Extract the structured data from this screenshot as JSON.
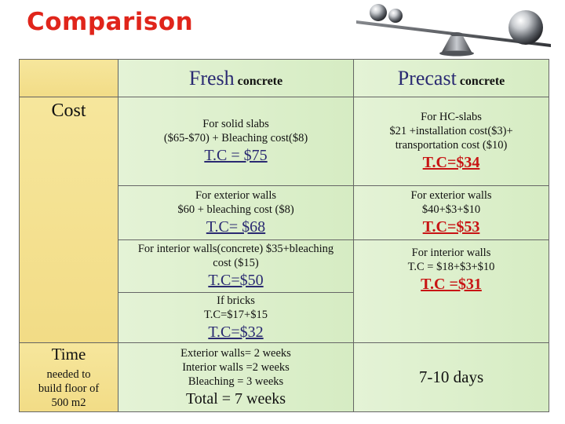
{
  "title": "Comparison",
  "headers": {
    "fresh_main": "Fresh",
    "fresh_sub": "concrete",
    "precast_main": "Precast",
    "precast_sub": "concrete"
  },
  "cost_label": "Cost",
  "time_label": "Time",
  "time_sub_lines": [
    "needed to",
    "build floor of",
    "500 m2"
  ],
  "fresh": {
    "slabs_lines": [
      "For solid slabs",
      "($65-$70) +  Bleaching cost($8)"
    ],
    "slabs_tc": " T.C = $75",
    "ext_lines": [
      "For exterior walls",
      "$60 + bleaching cost ($8)"
    ],
    "ext_tc": "T.C= $68",
    "int_lines": [
      "For interior walls(concrete) $35+bleaching",
      "cost ($15)"
    ],
    "int_tc": "T.C=$50",
    "bricks_lines": [
      "If bricks",
      "T.C=$17+$15"
    ],
    "bricks_tc": "T.C=$32",
    "time_lines": [
      "Exterior walls= 2 weeks",
      "Interior walls =2 weeks",
      "Bleaching = 3 weeks"
    ],
    "time_total": "Total = 7 weeks"
  },
  "precast": {
    "slabs_lines": [
      "For HC-slabs",
      "$21 +installation cost($3)+",
      "transportation cost ($10)"
    ],
    "slabs_tc": "T.C=$34",
    "ext_lines": [
      "For exterior walls",
      "$40+$3+$10"
    ],
    "ext_tc": "T.C=$53",
    "int_lines": [
      "For interior walls",
      "T.C = $18+$3+$10"
    ],
    "int_tc": "T.C =$31",
    "time": "7-10 days"
  },
  "colors": {
    "title": "#e0251b",
    "header_blue": "#2a2a72",
    "total_red": "#c81414",
    "label_yellow": "#f3df8a",
    "cell_green": "#dceec9"
  }
}
